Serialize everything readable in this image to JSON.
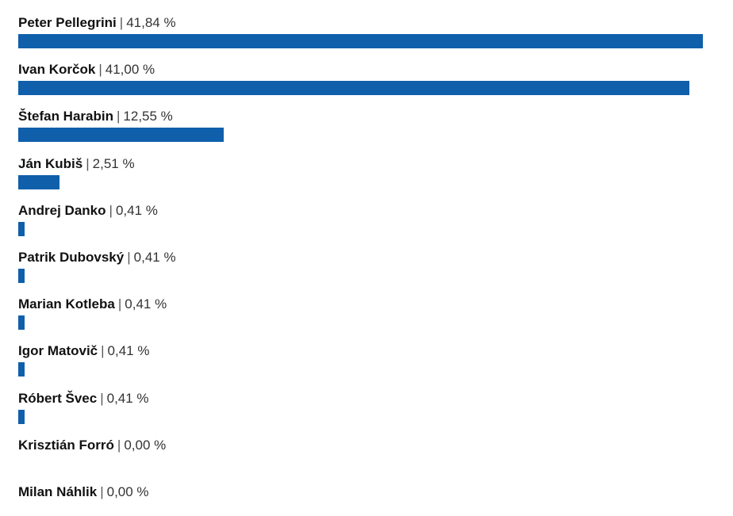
{
  "chart_data": {
    "type": "bar",
    "orientation": "horizontal",
    "bar_color": "#0f5fab",
    "xlim": [
      0,
      41.84
    ],
    "grid": false,
    "categories": [
      "Peter Pellegrini",
      "Ivan Korčok",
      "Štefan Harabin",
      "Ján Kubiš",
      "Andrej Danko",
      "Patrik Dubovský",
      "Marian Kotleba",
      "Igor Matovič",
      "Róbert Švec",
      "Krisztián Forró",
      "Milan Náhlik"
    ],
    "values": [
      41.84,
      41.0,
      12.55,
      2.51,
      0.41,
      0.41,
      0.41,
      0.41,
      0.41,
      0.0,
      0.0
    ],
    "value_labels": [
      "41,84 %",
      "41,00 %",
      "12,55 %",
      "2,51 %",
      "0,41 %",
      "0,41 %",
      "0,41 %",
      "0,41 %",
      "0,41 %",
      "0,00 %",
      "0,00 %"
    ],
    "separator": "|"
  }
}
